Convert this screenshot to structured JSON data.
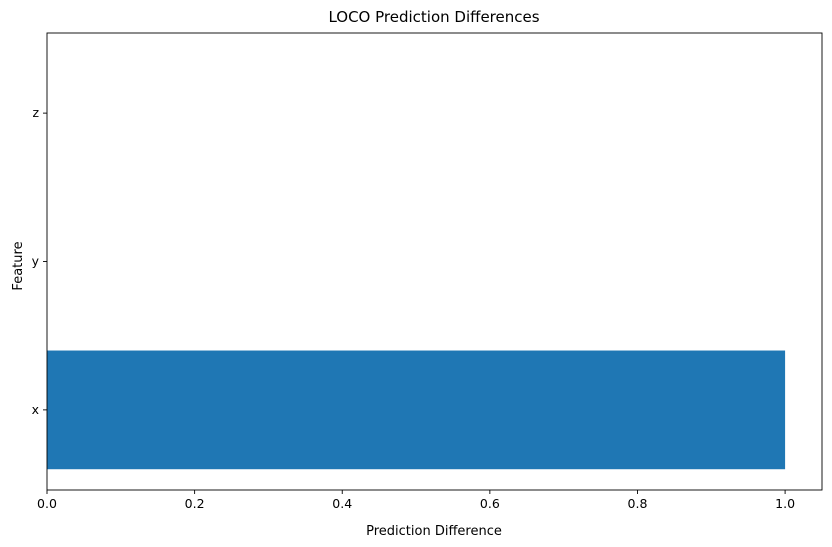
{
  "chart_data": {
    "type": "bar",
    "orientation": "horizontal",
    "title": "LOCO Prediction Differences",
    "xlabel": "Prediction Difference",
    "ylabel": "Feature",
    "categories": [
      "x",
      "y",
      "z"
    ],
    "values": [
      1.0,
      0.0,
      0.0
    ],
    "xlim": [
      0,
      1.05
    ],
    "xticks": [
      "0.0",
      "0.2",
      "0.4",
      "0.6",
      "0.8",
      "1.0"
    ],
    "grid": false,
    "legend": null,
    "colors": {
      "bar": "#1f77b4"
    }
  }
}
